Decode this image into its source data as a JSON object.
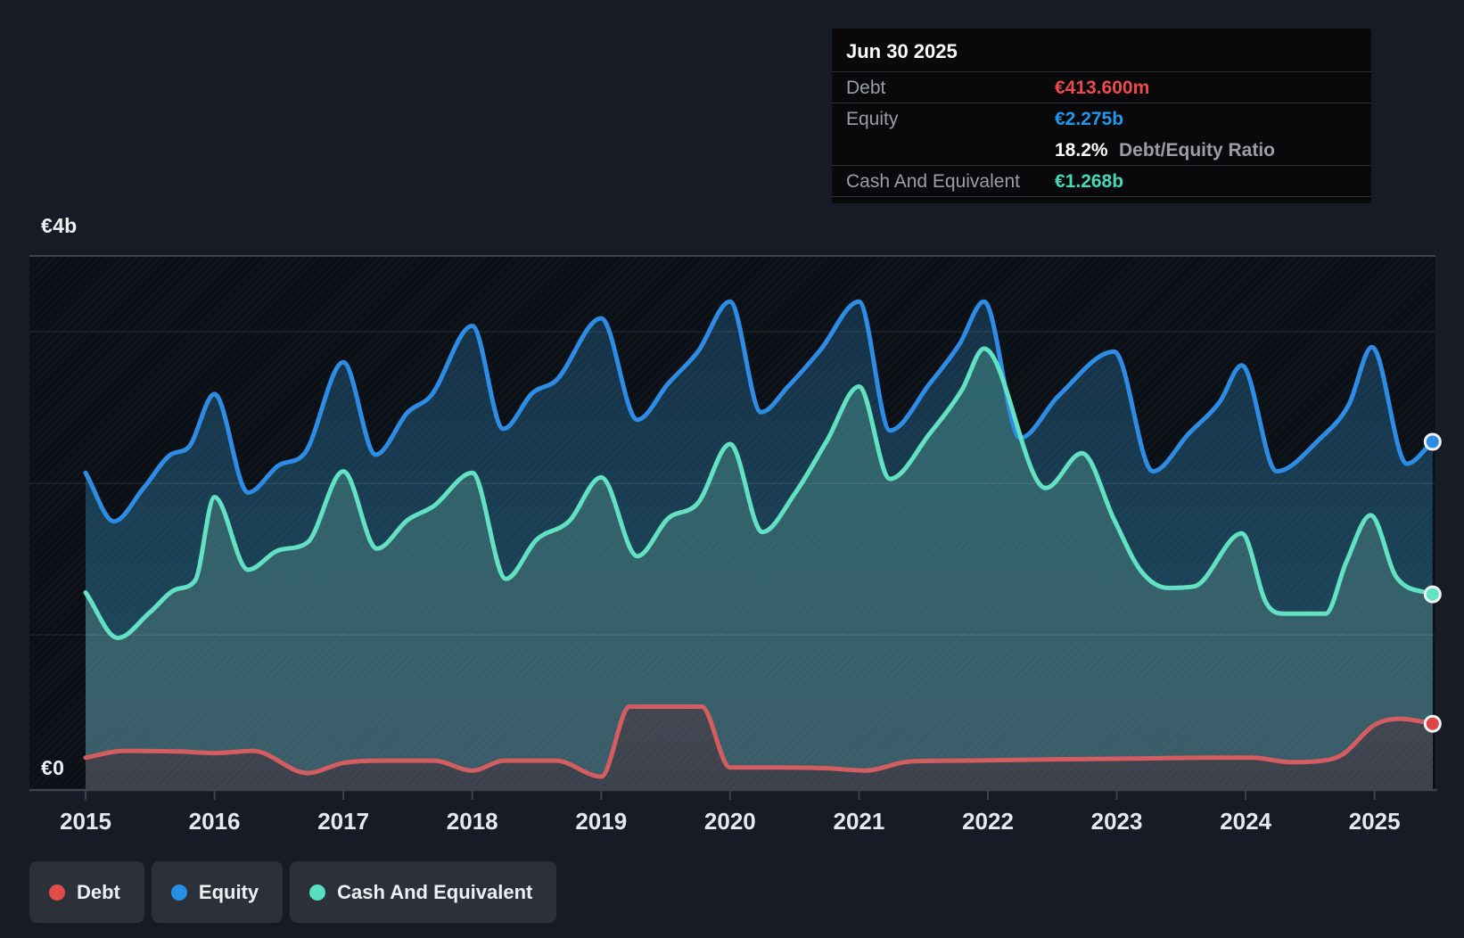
{
  "axes": {
    "y_top_label": "€4b",
    "y_zero_label": "€0",
    "years": [
      "2015",
      "2016",
      "2017",
      "2018",
      "2019",
      "2020",
      "2021",
      "2022",
      "2023",
      "2024",
      "2025"
    ]
  },
  "tooltip": {
    "date": "Jun 30 2025",
    "debt_label": "Debt",
    "debt_value": "€413.600m",
    "equity_label": "Equity",
    "equity_value": "€2.275b",
    "ratio_value": "18.2%",
    "ratio_label": "Debt/Equity Ratio",
    "cash_label": "Cash And Equivalent",
    "cash_value": "€1.268b"
  },
  "legend": {
    "items": [
      {
        "label": "Debt",
        "color": "#e14b4b"
      },
      {
        "label": "Equity",
        "color": "#2390e3"
      },
      {
        "label": "Cash And Equivalent",
        "color": "#57dfc0"
      }
    ]
  },
  "colors": {
    "background": "#161b25",
    "plot_background": "#0b1017",
    "gridline_faint": "rgba(255,255,255,0.07)",
    "gridline_strong": "#3c434f",
    "debt_line": "#d45d60",
    "debt_dot": "#e04545",
    "equity_line": "#2e8ce5",
    "cash_line": "#62e1c3",
    "tooltip_debt_value": "#ed4b4b",
    "tooltip_equity_value": "#2196ea",
    "tooltip_cash_value": "#46d8b8"
  },
  "chart_data": {
    "type": "area",
    "title": "Debt to Equity History and Analysis",
    "currency": "EUR",
    "x_range": [
      2015,
      2025.5
    ],
    "x_tick_years": [
      2015,
      2016,
      2017,
      2018,
      2019,
      2020,
      2021,
      2022,
      2023,
      2024,
      2025
    ],
    "y_unit": "billions EUR",
    "y_axis_labels": {
      "top": "€4b",
      "bottom": "€0"
    },
    "y_gridline_values_b": [
      3.5,
      3,
      2,
      1,
      0
    ],
    "legend_position": "bottom-left",
    "last_point": {
      "date": "Jun 30 2025",
      "debt_b": 0.4136,
      "equity_b": 2.275,
      "cash_b": 1.268,
      "debt_equity_ratio_pct": 18.2
    },
    "series": [
      {
        "name": "Equity",
        "color": "#2e8ce5",
        "points": [
          [
            2015.0,
            2.07
          ],
          [
            2015.22,
            1.75
          ],
          [
            2015.45,
            1.97
          ],
          [
            2015.66,
            2.19
          ],
          [
            2015.8,
            2.24
          ],
          [
            2016.0,
            2.59
          ],
          [
            2016.26,
            1.94
          ],
          [
            2016.5,
            2.12
          ],
          [
            2016.7,
            2.2
          ],
          [
            2017.0,
            2.8
          ],
          [
            2017.25,
            2.19
          ],
          [
            2017.5,
            2.47
          ],
          [
            2017.68,
            2.58
          ],
          [
            2018.0,
            3.04
          ],
          [
            2018.24,
            2.36
          ],
          [
            2018.47,
            2.6
          ],
          [
            2018.65,
            2.68
          ],
          [
            2019.0,
            3.09
          ],
          [
            2019.28,
            2.42
          ],
          [
            2019.52,
            2.66
          ],
          [
            2019.75,
            2.87
          ],
          [
            2020.0,
            3.2
          ],
          [
            2020.24,
            2.47
          ],
          [
            2020.45,
            2.64
          ],
          [
            2020.7,
            2.88
          ],
          [
            2021.0,
            3.2
          ],
          [
            2021.24,
            2.35
          ],
          [
            2021.55,
            2.66
          ],
          [
            2021.78,
            2.92
          ],
          [
            2021.97,
            3.2
          ],
          [
            2022.25,
            2.3
          ],
          [
            2022.55,
            2.58
          ],
          [
            2022.98,
            2.87
          ],
          [
            2023.28,
            2.08
          ],
          [
            2023.56,
            2.33
          ],
          [
            2023.8,
            2.54
          ],
          [
            2023.97,
            2.78
          ],
          [
            2024.24,
            2.08
          ],
          [
            2024.57,
            2.29
          ],
          [
            2024.8,
            2.52
          ],
          [
            2024.98,
            2.9
          ],
          [
            2025.25,
            2.13
          ],
          [
            2025.45,
            2.275
          ]
        ]
      },
      {
        "name": "Cash And Equivalent",
        "color": "#62e1c3",
        "points": [
          [
            2015.0,
            1.28
          ],
          [
            2015.25,
            0.98
          ],
          [
            2015.5,
            1.15
          ],
          [
            2015.7,
            1.3
          ],
          [
            2015.85,
            1.36
          ],
          [
            2016.0,
            1.91
          ],
          [
            2016.26,
            1.43
          ],
          [
            2016.5,
            1.56
          ],
          [
            2016.72,
            1.61
          ],
          [
            2017.0,
            2.08
          ],
          [
            2017.26,
            1.57
          ],
          [
            2017.5,
            1.76
          ],
          [
            2017.7,
            1.85
          ],
          [
            2018.0,
            2.07
          ],
          [
            2018.26,
            1.37
          ],
          [
            2018.5,
            1.63
          ],
          [
            2018.75,
            1.75
          ],
          [
            2019.0,
            2.04
          ],
          [
            2019.28,
            1.52
          ],
          [
            2019.52,
            1.77
          ],
          [
            2019.75,
            1.87
          ],
          [
            2020.0,
            2.26
          ],
          [
            2020.25,
            1.68
          ],
          [
            2020.5,
            1.93
          ],
          [
            2020.75,
            2.28
          ],
          [
            2021.0,
            2.64
          ],
          [
            2021.24,
            2.03
          ],
          [
            2021.55,
            2.33
          ],
          [
            2021.8,
            2.62
          ],
          [
            2021.97,
            2.89
          ],
          [
            2022.45,
            1.97
          ],
          [
            2022.73,
            2.2
          ],
          [
            2022.98,
            1.76
          ],
          [
            2023.19,
            1.42
          ],
          [
            2023.4,
            1.31
          ],
          [
            2023.6,
            1.32
          ],
          [
            2023.97,
            1.67
          ],
          [
            2024.16,
            1.21
          ],
          [
            2024.3,
            1.14
          ],
          [
            2024.62,
            1.14
          ],
          [
            2024.78,
            1.48
          ],
          [
            2024.97,
            1.79
          ],
          [
            2025.17,
            1.38
          ],
          [
            2025.45,
            1.268
          ]
        ]
      },
      {
        "name": "Debt",
        "color": "#d45d60",
        "points": [
          [
            2015.0,
            0.19
          ],
          [
            2015.3,
            0.235
          ],
          [
            2015.75,
            0.23
          ],
          [
            2016.0,
            0.22
          ],
          [
            2016.3,
            0.235
          ],
          [
            2016.72,
            0.088
          ],
          [
            2017.0,
            0.155
          ],
          [
            2017.3,
            0.17
          ],
          [
            2017.7,
            0.17
          ],
          [
            2018.0,
            0.105
          ],
          [
            2018.25,
            0.17
          ],
          [
            2018.65,
            0.17
          ],
          [
            2019.0,
            0.065
          ],
          [
            2019.22,
            0.527
          ],
          [
            2019.78,
            0.527
          ],
          [
            2020.0,
            0.125
          ],
          [
            2020.4,
            0.125
          ],
          [
            2020.75,
            0.12
          ],
          [
            2021.05,
            0.105
          ],
          [
            2021.4,
            0.165
          ],
          [
            2021.8,
            0.17
          ],
          [
            2022.2,
            0.175
          ],
          [
            2022.7,
            0.18
          ],
          [
            2023.2,
            0.185
          ],
          [
            2023.7,
            0.19
          ],
          [
            2024.05,
            0.19
          ],
          [
            2024.35,
            0.16
          ],
          [
            2024.6,
            0.17
          ],
          [
            2024.75,
            0.21
          ],
          [
            2025.0,
            0.406
          ],
          [
            2025.2,
            0.447
          ],
          [
            2025.45,
            0.414
          ]
        ]
      }
    ]
  }
}
